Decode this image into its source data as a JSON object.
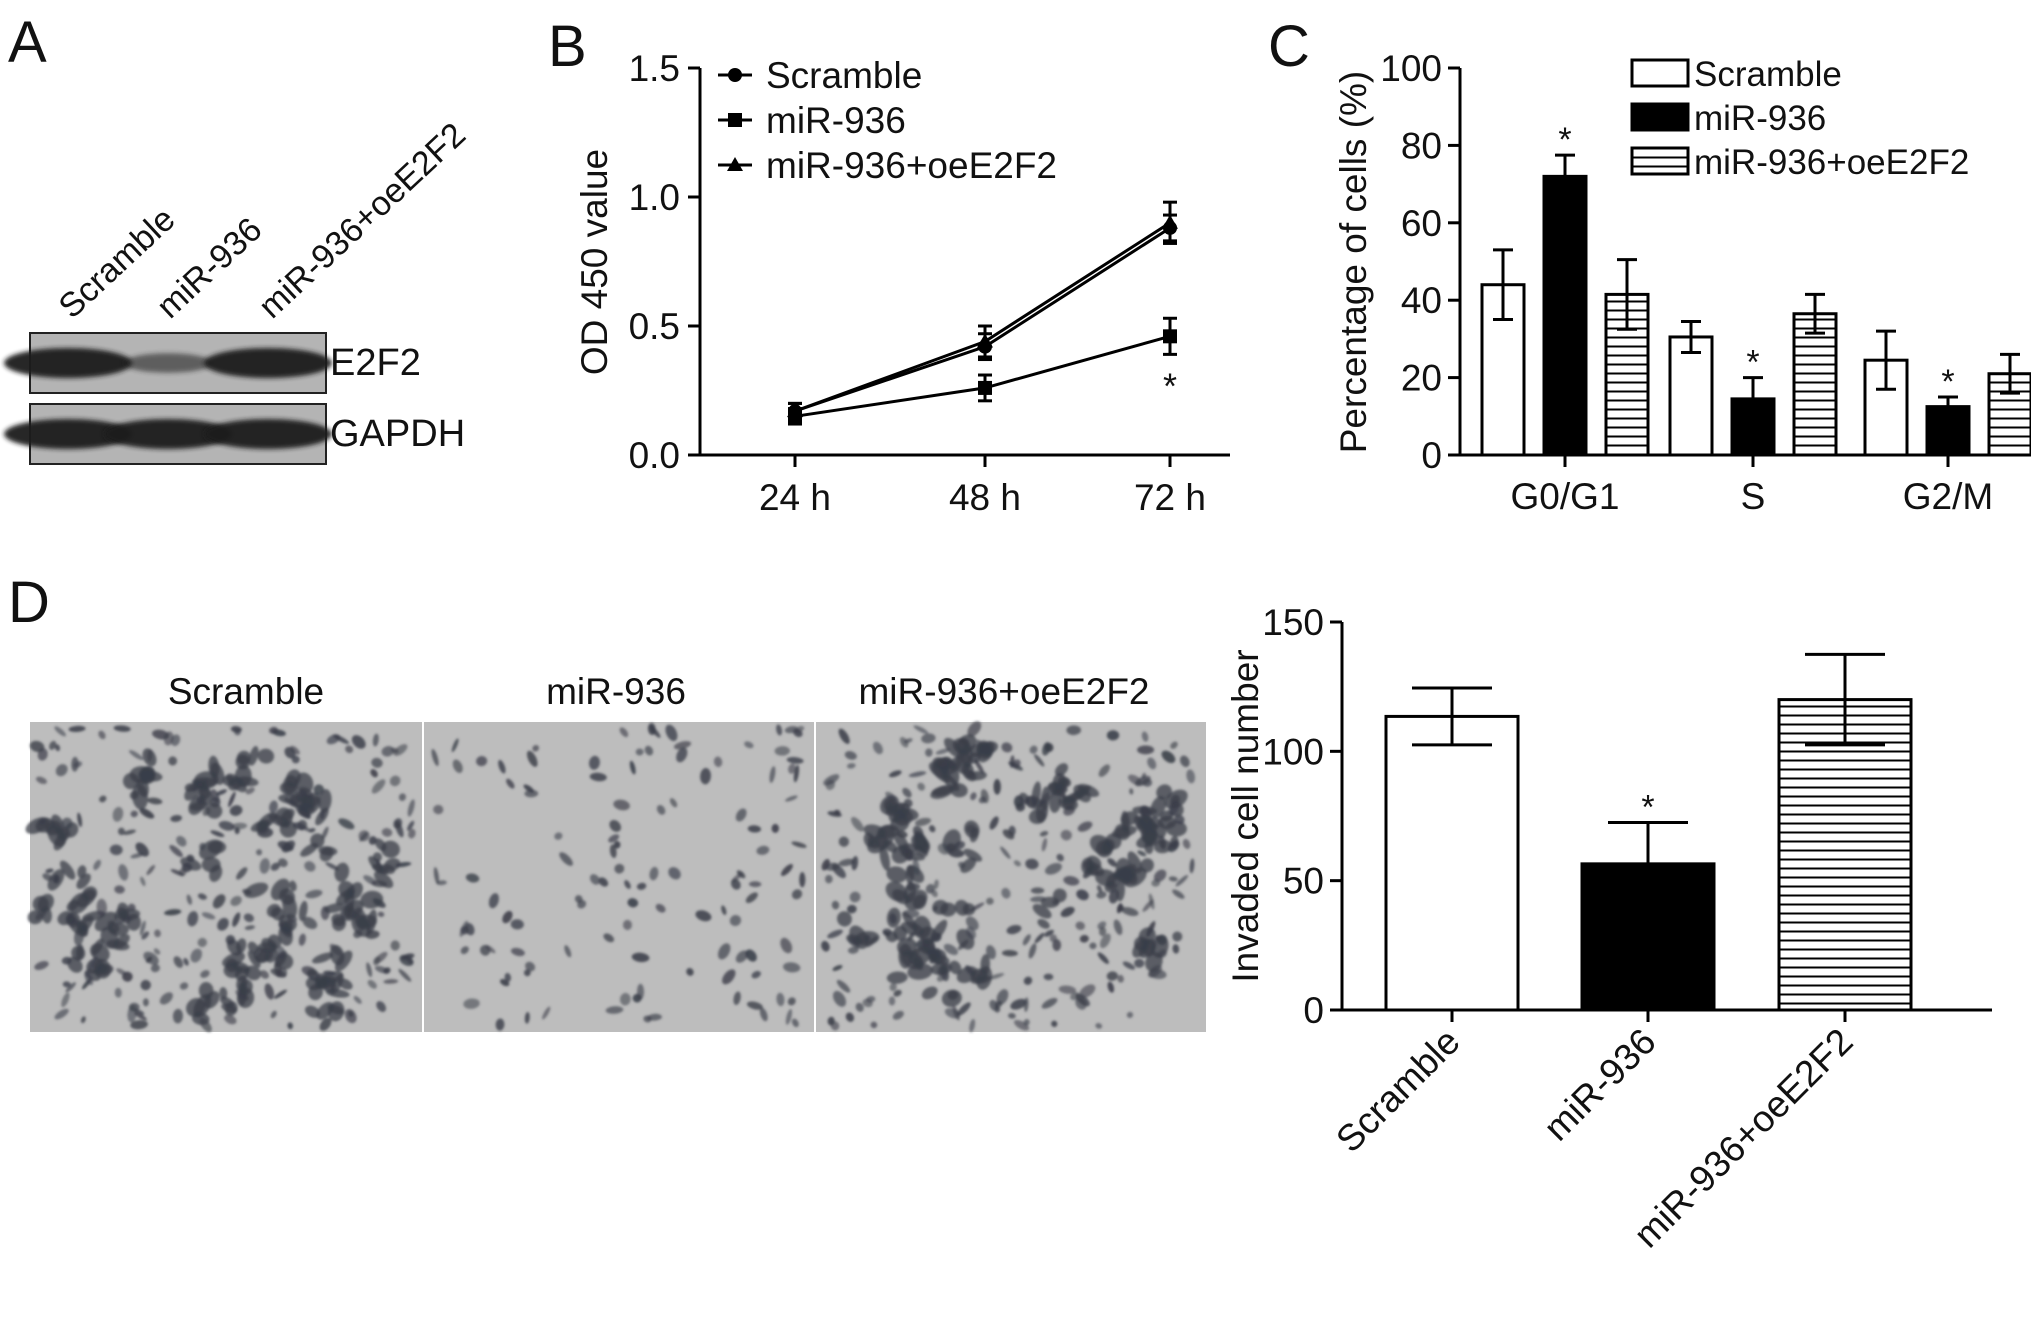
{
  "panel_letters": {
    "A": "A",
    "B": "B",
    "C": "C",
    "D": "D"
  },
  "western_blot": {
    "lanes": [
      "Scramble",
      "miR-936",
      "miR-936+oeE2F2"
    ],
    "rows": [
      {
        "label": "E2F2",
        "relative_intensity": [
          1.0,
          0.35,
          1.0
        ]
      },
      {
        "label": "GAPDH",
        "relative_intensity": [
          1.0,
          1.0,
          1.0
        ]
      }
    ]
  },
  "invasion_images": {
    "labels": [
      "Scramble",
      "miR-936",
      "miR-936+oeE2F2"
    ],
    "relative_density": [
      0.85,
      0.45,
      0.9
    ]
  },
  "colors": {
    "black": "#000000",
    "white": "#ffffff",
    "image_bg": "#b9b9b9",
    "cell": "#3a3d48"
  },
  "chart_data": [
    {
      "panel": "B",
      "type": "line",
      "x": [
        "24 h",
        "48 h",
        "72 h"
      ],
      "ylabel": "OD 450 value",
      "ylim": [
        0,
        1.5
      ],
      "yticks": [
        "0.0",
        "0.5",
        "1.0",
        "1.5"
      ],
      "legend": "top-left",
      "series": [
        {
          "name": "Scramble",
          "marker": "circle",
          "values": [
            0.17,
            0.42,
            0.88
          ],
          "errors": [
            0.03,
            0.05,
            0.05
          ]
        },
        {
          "name": "miR-936",
          "marker": "square",
          "values": [
            0.15,
            0.26,
            0.46
          ],
          "errors": [
            0.03,
            0.05,
            0.07
          ]
        },
        {
          "name": "miR-936+oeE2F2",
          "marker": "triangle",
          "values": [
            0.17,
            0.44,
            0.9
          ],
          "errors": [
            0.03,
            0.06,
            0.08
          ]
        }
      ],
      "annotations": [
        {
          "text": "*",
          "series": "miR-936",
          "x": "72 h"
        }
      ]
    },
    {
      "panel": "C",
      "type": "bar",
      "categories": [
        "G0/G1",
        "S",
        "G2/M"
      ],
      "ylabel": "Percentage of cells (%)",
      "ylim": [
        0,
        100
      ],
      "yticks": [
        "0",
        "20",
        "40",
        "60",
        "80",
        "100"
      ],
      "legend": "top-right",
      "series": [
        {
          "name": "Scramble",
          "fill": "white",
          "values": [
            44,
            30.5,
            24.5
          ],
          "errors": [
            9,
            4,
            7.5
          ]
        },
        {
          "name": "miR-936",
          "fill": "black",
          "values": [
            72,
            14.5,
            12.5
          ],
          "errors": [
            5.5,
            5.5,
            2.5
          ]
        },
        {
          "name": "miR-936+oeE2F2",
          "fill": "hlines",
          "values": [
            41.5,
            36.5,
            21
          ],
          "errors": [
            9,
            5,
            5
          ]
        }
      ],
      "annotations": [
        {
          "text": "*",
          "series": "miR-936",
          "category": "G0/G1"
        },
        {
          "text": "*",
          "series": "miR-936",
          "category": "S"
        },
        {
          "text": "*",
          "series": "miR-936",
          "category": "G2/M"
        }
      ]
    },
    {
      "panel": "D",
      "type": "bar",
      "categories": [
        "Scramble",
        "miR-936",
        "miR-936+oeE2F2"
      ],
      "ylabel": "Invaded cell number",
      "ylim": [
        0,
        150
      ],
      "yticks": [
        "0",
        "50",
        "100",
        "150"
      ],
      "fills": [
        "white",
        "black",
        "hlines"
      ],
      "values": [
        113.5,
        56.5,
        120
      ],
      "errors": [
        11,
        16,
        17.5
      ],
      "annotations": [
        {
          "text": "*",
          "category": "miR-936"
        }
      ]
    }
  ]
}
